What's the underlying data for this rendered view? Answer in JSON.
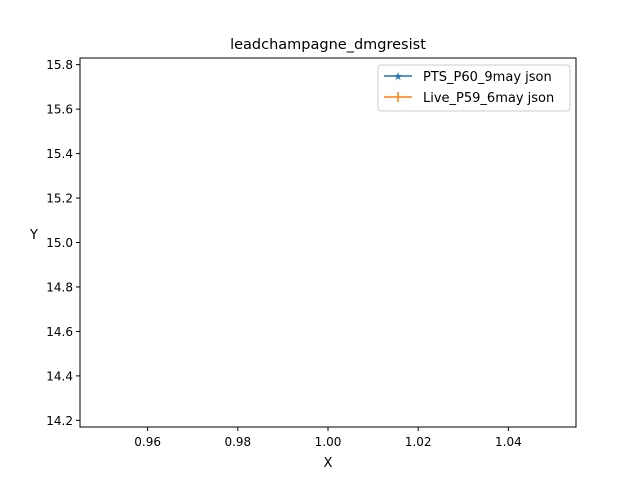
{
  "chart_data": {
    "type": "line",
    "title": "leadchampagne_dmgresist",
    "xlabel": "X",
    "ylabel": "Y",
    "xlim": [
      0.945,
      1.055
    ],
    "ylim": [
      14.17,
      15.83
    ],
    "xticks": [
      0.96,
      0.98,
      1.0,
      1.02,
      1.04
    ],
    "xtick_labels": [
      "0.96",
      "0.98",
      "1.00",
      "1.02",
      "1.04"
    ],
    "yticks": [
      14.2,
      14.4,
      14.6,
      14.8,
      15.0,
      15.2,
      15.4,
      15.6,
      15.8
    ],
    "ytick_labels": [
      "14.2",
      "14.4",
      "14.6",
      "14.8",
      "15.0",
      "15.2",
      "15.4",
      "15.6",
      "15.8"
    ],
    "grid": false,
    "legend_position": "top-right",
    "series": [
      {
        "name": "PTS_P60_9may json",
        "color": "#1f77b4",
        "marker": "star",
        "x": [],
        "y": []
      },
      {
        "name": "Live_P59_6may json",
        "color": "#ff7f0e",
        "marker": "plus",
        "x": [],
        "y": []
      }
    ]
  }
}
